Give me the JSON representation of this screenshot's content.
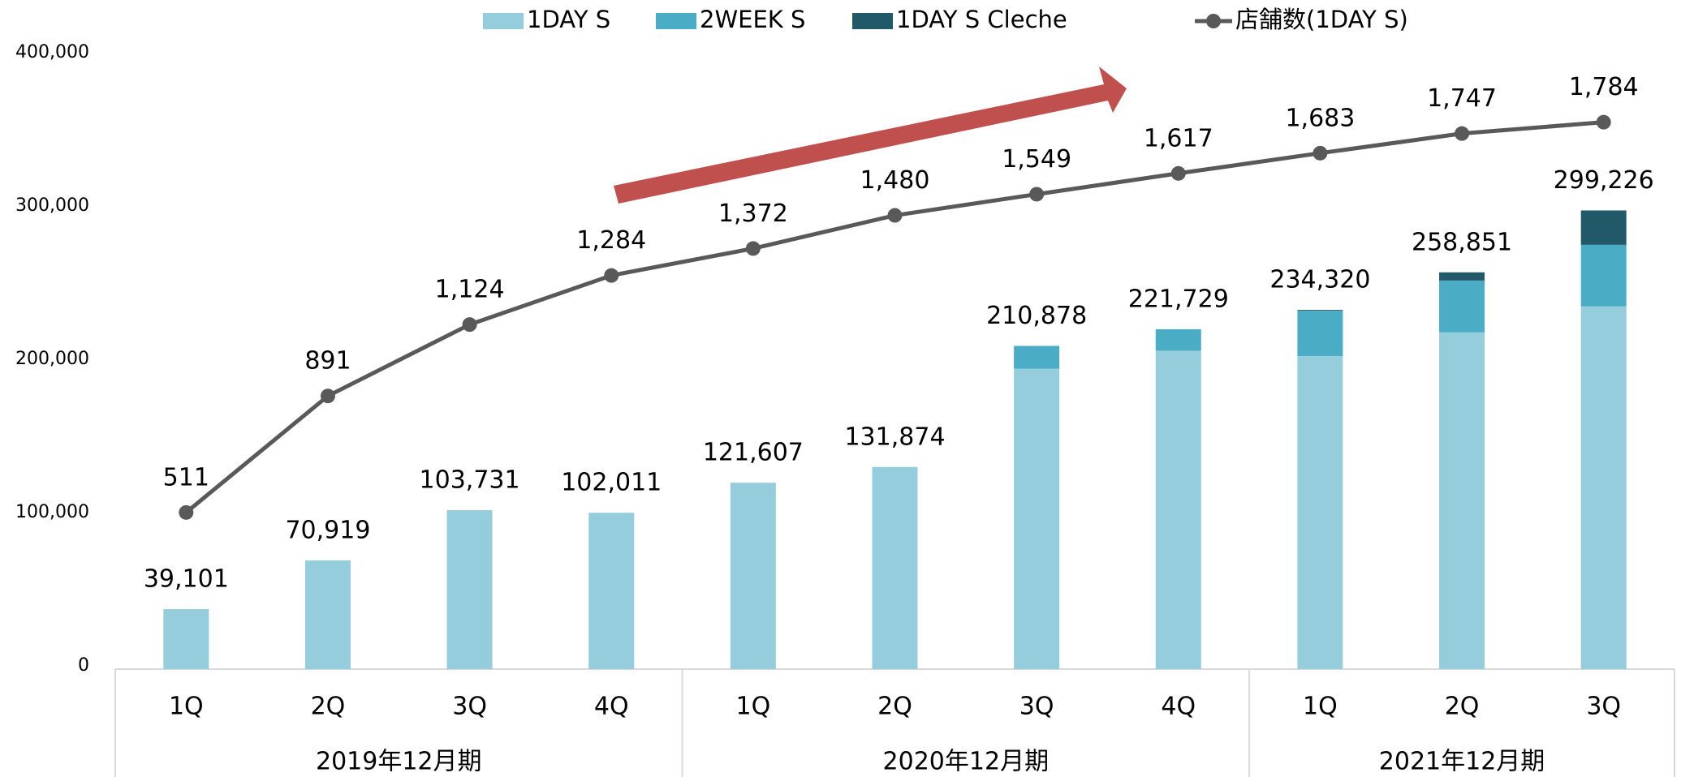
{
  "chart_data": {
    "type": "bar",
    "categories": [
      "1Q",
      "2Q",
      "3Q",
      "4Q",
      "1Q",
      "2Q",
      "3Q",
      "4Q",
      "1Q",
      "2Q",
      "3Q"
    ],
    "groups": [
      {
        "label": "2019年12月期",
        "span": 4
      },
      {
        "label": "2020年12月期",
        "span": 4
      },
      {
        "label": "2021年12月期",
        "span": 3
      }
    ],
    "series": [
      {
        "name": "1DAY S",
        "color": "#96cddd",
        "values": [
          39101,
          70919,
          103731,
          102011,
          121607,
          131874,
          196000,
          207700,
          204200,
          219700,
          236600
        ]
      },
      {
        "name": "2WEEK S",
        "color": "#4bacc6",
        "values": [
          0,
          0,
          0,
          0,
          0,
          0,
          14878,
          14029,
          29600,
          33800,
          40200
        ]
      },
      {
        "name": "1DAY S Cleche",
        "color": "#215968",
        "values": [
          0,
          0,
          0,
          0,
          0,
          0,
          0,
          0,
          520,
          5351,
          22426
        ]
      },
      {
        "name": "店舗数(1DAY S)",
        "type": "line",
        "axis": "y2",
        "color": "#595959",
        "values": [
          511,
          891,
          1124,
          1284,
          1372,
          1480,
          1549,
          1617,
          1683,
          1747,
          1784
        ],
        "value_labels": [
          "511",
          "891",
          "1,124",
          "1,284",
          "1,372",
          "1,480",
          "1,549",
          "1,617",
          "1,683",
          "1,747",
          "1,784"
        ]
      }
    ],
    "totals": [
      "39,101",
      "70,919",
      "103,731",
      "102,011",
      "121,607",
      "131,874",
      "210,878",
      "221,729",
      "234,320",
      "258,851",
      "299,226"
    ],
    "ylim": [
      0,
      400000
    ],
    "yticks": [
      {
        "value": 0,
        "label": "0"
      },
      {
        "value": 100000,
        "label": "100,000"
      },
      {
        "value": 200000,
        "label": "200,000"
      },
      {
        "value": 300000,
        "label": "300,000"
      },
      {
        "value": 400000,
        "label": "400,000"
      }
    ],
    "y2lim": [
      0,
      2000
    ],
    "grid": false,
    "legend": "top"
  }
}
